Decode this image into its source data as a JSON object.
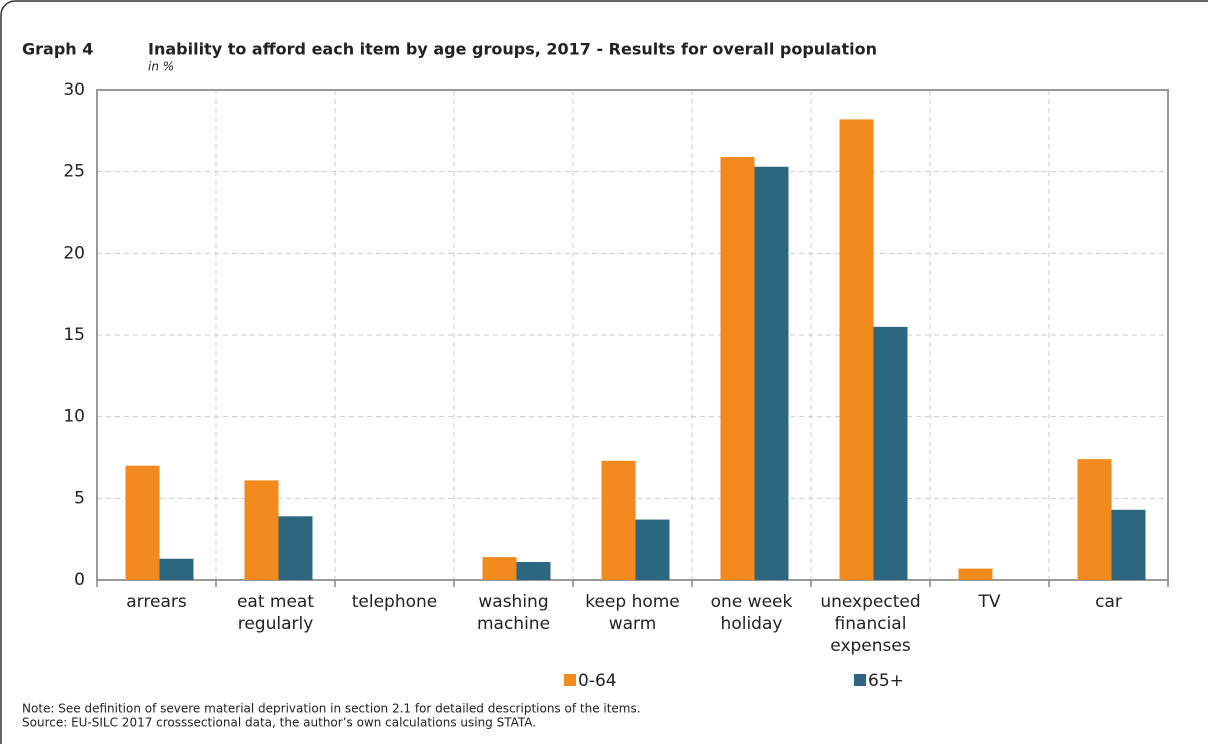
{
  "chart_data": {
    "type": "bar",
    "label": "Graph 4",
    "title": "Inability to afford each item by age groups, 2017 - Results for overall population",
    "subtitle": "in %",
    "categories": [
      [
        "arrears"
      ],
      [
        "eat meat",
        "regularly"
      ],
      [
        "telephone"
      ],
      [
        "washing",
        "machine"
      ],
      [
        "keep home",
        "warm"
      ],
      [
        "one week",
        "holiday"
      ],
      [
        "unexpected",
        "financial",
        "expenses"
      ],
      [
        "TV"
      ],
      [
        "car"
      ]
    ],
    "series": [
      {
        "name": "0-64",
        "color": "#f28a1e",
        "values": [
          7.0,
          6.1,
          0,
          1.4,
          7.3,
          25.9,
          28.2,
          0.7,
          7.4
        ]
      },
      {
        "name": "65+",
        "color": "#2c677f",
        "values": [
          1.3,
          3.9,
          0,
          1.1,
          3.7,
          25.3,
          15.5,
          0,
          4.3
        ]
      }
    ],
    "ylim": [
      0,
      30
    ],
    "yticks": [
      0,
      5,
      10,
      15,
      20,
      25,
      30
    ],
    "grid": true,
    "notes": [
      "Note: See definition of severe material deprivation in section 2.1 for detailed descriptions of the items.",
      "Source: EU-SILC 2017 crosssectional data, the author’s own calculations using STATA."
    ]
  }
}
